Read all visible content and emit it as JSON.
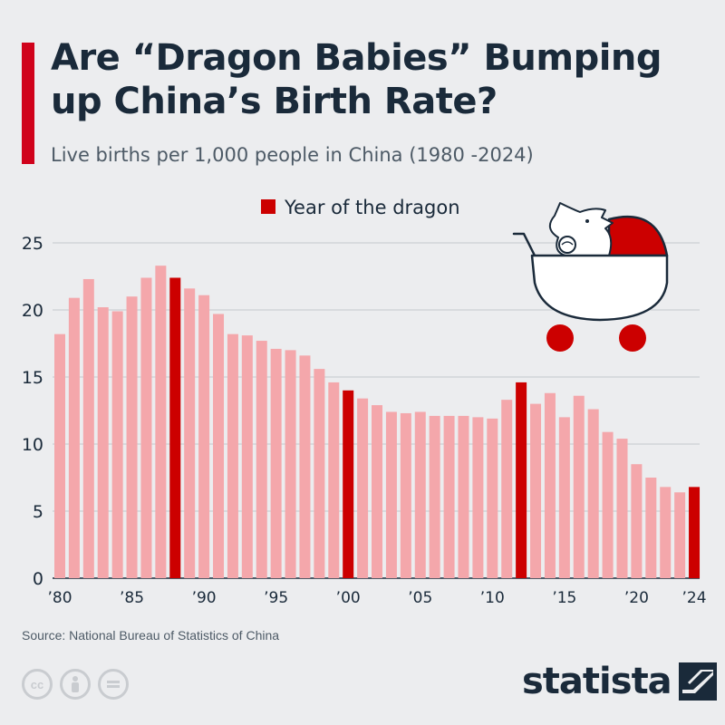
{
  "header": {
    "title": "Are “Dragon Babies” Bumping up China’s Birth Rate?",
    "subtitle": "Live births per 1,000 people in China (1980 -2024)"
  },
  "legend": {
    "label": "Year of the dragon"
  },
  "colors": {
    "accent": "#d0021b",
    "bar": "#f4a7ab",
    "highlight": "#cc0000",
    "text": "#1a2a3a",
    "grid": "#c5c9ce"
  },
  "icons": {
    "illustration": "stroller-dragon-icon",
    "cc": "cc-icon",
    "by": "person-icon",
    "nd": "equals-icon",
    "brand": "statista-logo-icon"
  },
  "chart_data": {
    "type": "bar",
    "title": "Are “Dragon Babies” Bumping up China’s Birth Rate?",
    "subtitle": "Live births per 1,000 people in China (1980 -2024)",
    "xlabel": "",
    "ylabel": "",
    "ylim": [
      0,
      25
    ],
    "yticks": [
      0,
      5,
      10,
      15,
      20,
      25
    ],
    "grid": true,
    "legend_position": "top",
    "x": [
      1980,
      1981,
      1982,
      1983,
      1984,
      1985,
      1986,
      1987,
      1988,
      1989,
      1990,
      1991,
      1992,
      1993,
      1994,
      1995,
      1996,
      1997,
      1998,
      1999,
      2000,
      2001,
      2002,
      2003,
      2004,
      2005,
      2006,
      2007,
      2008,
      2009,
      2010,
      2011,
      2012,
      2013,
      2014,
      2015,
      2016,
      2017,
      2018,
      2019,
      2020,
      2021,
      2022,
      2023,
      2024
    ],
    "values": [
      18.2,
      20.9,
      22.3,
      20.2,
      19.9,
      21.0,
      22.4,
      23.3,
      22.4,
      21.6,
      21.1,
      19.7,
      18.2,
      18.1,
      17.7,
      17.1,
      17.0,
      16.6,
      15.6,
      14.6,
      14.0,
      13.4,
      12.9,
      12.4,
      12.3,
      12.4,
      12.1,
      12.1,
      12.1,
      12.0,
      11.9,
      13.3,
      14.6,
      13.0,
      13.8,
      12.0,
      13.6,
      12.6,
      10.9,
      10.4,
      8.5,
      7.5,
      6.8,
      6.4,
      6.8
    ],
    "dragon_years": [
      1988,
      2000,
      2012,
      2024
    ],
    "series": [
      {
        "name": "Year of the dragon"
      }
    ],
    "xtick_labels": [
      {
        "year": 1980,
        "label": "’80"
      },
      {
        "year": 1985,
        "label": "’85"
      },
      {
        "year": 1990,
        "label": "’90"
      },
      {
        "year": 1995,
        "label": "’95"
      },
      {
        "year": 2000,
        "label": "’00"
      },
      {
        "year": 2005,
        "label": "’05"
      },
      {
        "year": 2010,
        "label": "’10"
      },
      {
        "year": 2015,
        "label": "’15"
      },
      {
        "year": 2020,
        "label": "’20"
      },
      {
        "year": 2024,
        "label": "’24"
      }
    ]
  },
  "footer": {
    "source": "Source: National Bureau of Statistics of China",
    "cc_label": "cc",
    "brand": "statista"
  }
}
